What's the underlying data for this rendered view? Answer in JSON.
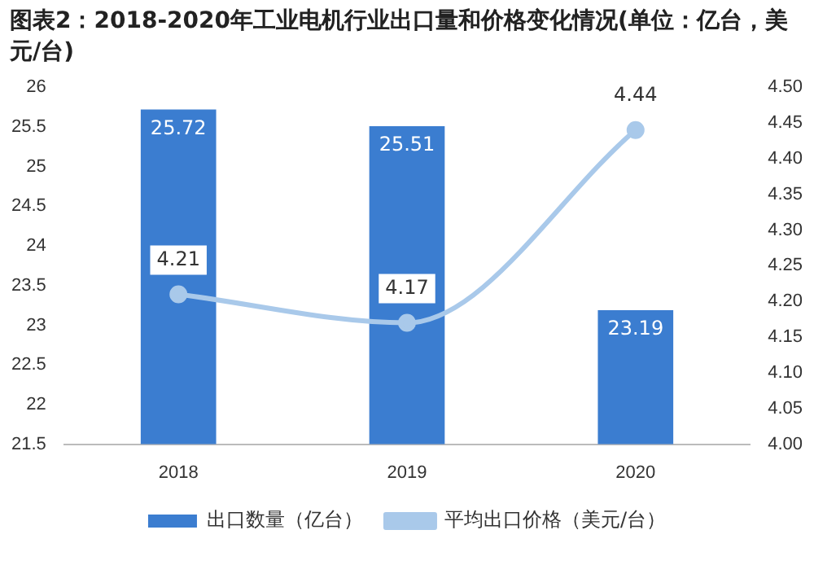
{
  "chart_data": {
    "type": "bar",
    "title": "图表2：2018-2020年工业电机行业出口量和价格变化情况(单位：亿台，美元/台)",
    "categories": [
      "2018",
      "2019",
      "2020"
    ],
    "series": [
      {
        "name": "出口数量（亿台）",
        "color": "#3b7dd0",
        "values": [
          25.72,
          25.51,
          23.19
        ]
      },
      {
        "name": "平均出口价格（美元/台）",
        "type": "line",
        "axis": "y2",
        "color": "#a9c9ea",
        "values": [
          4.21,
          4.17,
          4.44
        ]
      }
    ],
    "ylim": [
      21.5,
      26
    ],
    "yticks": [
      21.5,
      22,
      22.5,
      23,
      23.5,
      24,
      24.5,
      25,
      25.5,
      26
    ],
    "y2lim": [
      4.0,
      4.5
    ],
    "y2ticks": [
      {
        "value": 4.0,
        "label": "4.00"
      },
      {
        "value": 4.05,
        "label": "4.05"
      },
      {
        "value": 4.1,
        "label": "4.10"
      },
      {
        "value": 4.15,
        "label": "4.15"
      },
      {
        "value": 4.2,
        "label": "4.20"
      },
      {
        "value": 4.25,
        "label": "4.25"
      },
      {
        "value": 4.3,
        "label": "4.30"
      },
      {
        "value": 4.35,
        "label": "4.35"
      },
      {
        "value": 4.4,
        "label": "4.40"
      },
      {
        "value": 4.45,
        "label": "4.45"
      },
      {
        "value": 4.5,
        "label": "4.50"
      }
    ],
    "data_labels": true,
    "grid": false,
    "legend": "bottom",
    "marker": "circle",
    "line_style": "solid"
  }
}
